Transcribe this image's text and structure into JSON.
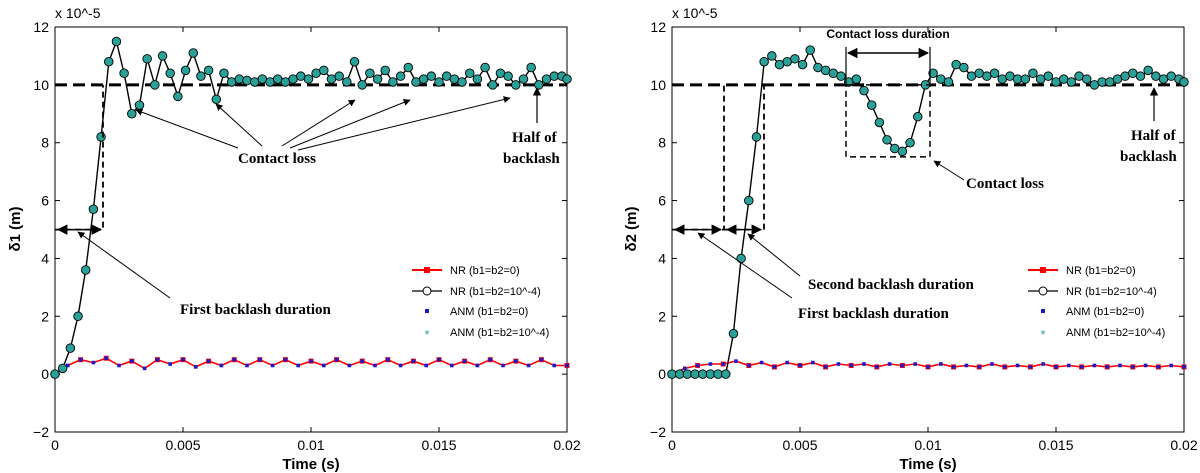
{
  "chart_data": [
    {
      "type": "line",
      "panel": "left",
      "xlabel": "Time (s)",
      "ylabel": "δ1 (m)",
      "scale_label": "x 10^-5",
      "xlim": [
        0,
        0.02
      ],
      "ylim": [
        -2,
        12
      ],
      "xticks": [
        0,
        0.005,
        0.01,
        0.015,
        0.02
      ],
      "xtick_labels": [
        "0",
        "0.005",
        "0.01",
        "0.015",
        "0.02"
      ],
      "yticks": [
        -2,
        0,
        2,
        4,
        6,
        8,
        10,
        12
      ],
      "ytick_labels": [
        "−2",
        "0",
        "2",
        "4",
        "6",
        "8",
        "10",
        "12"
      ],
      "reference_line": {
        "y": 10,
        "label": "Half of backlash"
      },
      "legend": {
        "position": "lower-right",
        "entries": [
          "NR (b1=b2=0)",
          "NR (b1=b2=10^-4)",
          "ANM (b1=b2=0)",
          "ANM (b1=b2=10^-4)"
        ]
      },
      "annotations": {
        "contact_loss": "Contact loss",
        "half_backlash_1": "Half of",
        "half_backlash_2": "backlash",
        "first_backlash": "First backlash duration"
      },
      "series": [
        {
          "name": "NR (b1=b2=10^-4)",
          "x": [
            0,
            0.0003,
            0.0006,
            0.0009,
            0.0012,
            0.0015,
            0.0018,
            0.0021,
            0.0024,
            0.0027,
            0.003,
            0.0033,
            0.0036,
            0.0039,
            0.0042,
            0.0045,
            0.0048,
            0.0051,
            0.0054,
            0.0057,
            0.006,
            0.0063,
            0.0066,
            0.0069,
            0.0072,
            0.0075,
            0.0078,
            0.0081,
            0.0084,
            0.0087,
            0.009,
            0.0093,
            0.0096,
            0.0099,
            0.0102,
            0.0105,
            0.0108,
            0.0111,
            0.0114,
            0.0117,
            0.012,
            0.0123,
            0.0126,
            0.0129,
            0.0132,
            0.0135,
            0.0138,
            0.0141,
            0.0144,
            0.0147,
            0.015,
            0.0153,
            0.0156,
            0.0159,
            0.0162,
            0.0165,
            0.0168,
            0.0171,
            0.0174,
            0.0177,
            0.018,
            0.0183,
            0.0186,
            0.0189,
            0.0192,
            0.0195,
            0.0198,
            0.02
          ],
          "values": [
            0,
            0.2,
            0.9,
            2.0,
            3.6,
            5.7,
            8.2,
            10.8,
            11.5,
            10.4,
            9.0,
            9.3,
            10.9,
            10.0,
            11.0,
            10.4,
            9.6,
            10.5,
            11.1,
            10.3,
            10.5,
            9.5,
            10.4,
            10.1,
            10.2,
            10.15,
            10.1,
            10.2,
            10.1,
            10.2,
            10.1,
            10.2,
            10.3,
            10.2,
            10.4,
            10.5,
            10.2,
            10.3,
            10.1,
            10.8,
            10.0,
            10.4,
            10.2,
            10.5,
            10.1,
            10.3,
            10.6,
            10.1,
            10.2,
            10.3,
            10.1,
            10.3,
            10.2,
            10.1,
            10.4,
            10.2,
            10.6,
            10.0,
            10.4,
            10.3,
            10.0,
            10.2,
            10.6,
            10.0,
            10.2,
            10.3,
            10.3,
            10.2
          ]
        },
        {
          "name": "NR (b1=b2=0)",
          "x": [
            0,
            0.0005,
            0.001,
            0.0015,
            0.002,
            0.0025,
            0.003,
            0.0035,
            0.004,
            0.0045,
            0.005,
            0.0055,
            0.006,
            0.0065,
            0.007,
            0.0075,
            0.008,
            0.0085,
            0.009,
            0.0095,
            0.01,
            0.0105,
            0.011,
            0.0115,
            0.012,
            0.0125,
            0.013,
            0.0135,
            0.014,
            0.0145,
            0.015,
            0.0155,
            0.016,
            0.0165,
            0.017,
            0.0175,
            0.018,
            0.0185,
            0.019,
            0.0195,
            0.02
          ],
          "values": [
            0,
            0.3,
            0.5,
            0.4,
            0.55,
            0.3,
            0.45,
            0.2,
            0.5,
            0.35,
            0.5,
            0.25,
            0.45,
            0.3,
            0.5,
            0.3,
            0.5,
            0.3,
            0.5,
            0.3,
            0.45,
            0.3,
            0.5,
            0.3,
            0.45,
            0.3,
            0.5,
            0.3,
            0.45,
            0.3,
            0.5,
            0.3,
            0.45,
            0.3,
            0.5,
            0.3,
            0.45,
            0.3,
            0.5,
            0.3,
            0.3
          ]
        }
      ]
    },
    {
      "type": "line",
      "panel": "right",
      "xlabel": "Time (s)",
      "ylabel": "δ2 (m)",
      "scale_label": "x 10^-5",
      "xlim": [
        0,
        0.02
      ],
      "ylim": [
        -2,
        12
      ],
      "xticks": [
        0,
        0.005,
        0.01,
        0.015,
        0.02
      ],
      "xtick_labels": [
        "0",
        "0.005",
        "0.01",
        "0.015",
        "0.02"
      ],
      "yticks": [
        -2,
        0,
        2,
        4,
        6,
        8,
        10,
        12
      ],
      "ytick_labels": [
        "−2",
        "0",
        "2",
        "4",
        "6",
        "8",
        "10",
        "12"
      ],
      "reference_line": {
        "y": 10,
        "label": "Half of backlash"
      },
      "legend": {
        "position": "lower-right",
        "entries": [
          "NR (b1=b2=0)",
          "NR (b1=b2=10^-4)",
          "ANM (b1=b2=0)",
          "ANM (b1=b2=10^-4)"
        ]
      },
      "annotations": {
        "contact_loss_duration": "Contact loss duration",
        "contact_loss": "Contact loss",
        "half_backlash_1": "Half of",
        "half_backlash_2": "backlash",
        "second_backlash": "Second backlash duration",
        "first_backlash": "First backlash duration"
      },
      "series": [
        {
          "name": "NR (b1=b2=10^-4)",
          "x": [
            0,
            0.0003,
            0.0006,
            0.0009,
            0.0012,
            0.0015,
            0.0018,
            0.0021,
            0.0024,
            0.0027,
            0.003,
            0.0033,
            0.0036,
            0.0039,
            0.0042,
            0.0045,
            0.0048,
            0.0051,
            0.0054,
            0.0057,
            0.006,
            0.0063,
            0.0066,
            0.0069,
            0.0072,
            0.0075,
            0.0078,
            0.0081,
            0.0084,
            0.0087,
            0.009,
            0.0093,
            0.0096,
            0.0099,
            0.0102,
            0.0105,
            0.0108,
            0.0111,
            0.0114,
            0.0117,
            0.012,
            0.0123,
            0.0126,
            0.0129,
            0.0132,
            0.0135,
            0.0138,
            0.0141,
            0.0144,
            0.0147,
            0.015,
            0.0153,
            0.0156,
            0.0159,
            0.0162,
            0.0165,
            0.0168,
            0.0171,
            0.0174,
            0.0177,
            0.018,
            0.0183,
            0.0186,
            0.0189,
            0.0192,
            0.0195,
            0.0198,
            0.02
          ],
          "values": [
            0,
            0,
            0,
            0,
            0,
            0,
            0,
            0,
            1.4,
            4.0,
            6.0,
            8.2,
            10.8,
            11.0,
            10.7,
            10.8,
            10.9,
            10.7,
            11.2,
            10.6,
            10.5,
            10.4,
            10.3,
            10.1,
            10.2,
            9.8,
            9.3,
            8.7,
            8.1,
            7.8,
            7.7,
            8.0,
            8.9,
            10.0,
            10.4,
            10.2,
            10.1,
            10.7,
            10.6,
            10.3,
            10.4,
            10.3,
            10.4,
            10.2,
            10.3,
            10.2,
            10.2,
            10.4,
            10.2,
            10.3,
            10.1,
            10.2,
            10.1,
            10.3,
            10.2,
            10.0,
            10.1,
            10.1,
            10.2,
            10.3,
            10.4,
            10.3,
            10.5,
            10.3,
            10.2,
            10.3,
            10.2,
            10.1
          ]
        },
        {
          "name": "NR (b1=b2=0)",
          "x": [
            0,
            0.0005,
            0.001,
            0.0015,
            0.002,
            0.0025,
            0.003,
            0.0035,
            0.004,
            0.0045,
            0.005,
            0.0055,
            0.006,
            0.0065,
            0.007,
            0.0075,
            0.008,
            0.0085,
            0.009,
            0.0095,
            0.01,
            0.0105,
            0.011,
            0.0115,
            0.012,
            0.0125,
            0.013,
            0.0135,
            0.014,
            0.0145,
            0.015,
            0.0155,
            0.016,
            0.0165,
            0.017,
            0.0175,
            0.018,
            0.0185,
            0.019,
            0.0195,
            0.02
          ],
          "values": [
            0,
            0.2,
            0.3,
            0.35,
            0.35,
            0.45,
            0.3,
            0.4,
            0.25,
            0.4,
            0.3,
            0.4,
            0.25,
            0.35,
            0.3,
            0.35,
            0.25,
            0.35,
            0.3,
            0.35,
            0.25,
            0.35,
            0.25,
            0.3,
            0.25,
            0.35,
            0.25,
            0.3,
            0.25,
            0.35,
            0.25,
            0.3,
            0.25,
            0.3,
            0.25,
            0.3,
            0.25,
            0.3,
            0.25,
            0.3,
            0.25
          ]
        }
      ]
    }
  ]
}
